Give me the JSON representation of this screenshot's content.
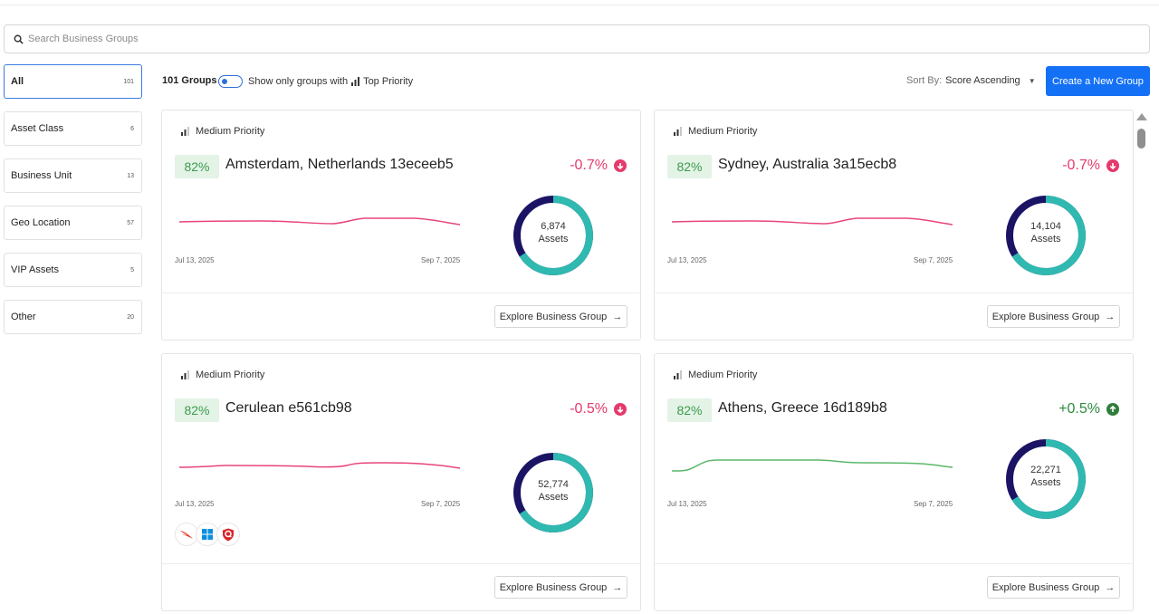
{
  "search": {
    "placeholder": "Search Business Groups"
  },
  "sidebar": {
    "items": [
      {
        "label": "All",
        "count": "101"
      },
      {
        "label": "Asset Class",
        "count": "6"
      },
      {
        "label": "Business Unit",
        "count": "13"
      },
      {
        "label": "Geo Location",
        "count": "57"
      },
      {
        "label": "VIP Assets",
        "count": "5"
      },
      {
        "label": "Other",
        "count": "20"
      }
    ]
  },
  "toolbar": {
    "groups_count": "101 Groups",
    "toggle_label_before": "Show only groups with",
    "toggle_label_after": "Top Priority",
    "sort_label": "Sort By:",
    "sort_value": "Score Ascending",
    "create_button": "Create a New Group"
  },
  "cards": [
    {
      "priority": "Medium Priority",
      "score": "82%",
      "title": "Amsterdam, Netherlands 13eceeb5",
      "delta": "-0.7%",
      "delta_direction": "down",
      "date_start": "Jul 13, 2025",
      "date_end": "Sep 7, 2025",
      "assets_count": "6,874",
      "assets_label": "Assets",
      "assets_fraction": 0.66,
      "explore_label": "Explore Business Group"
    },
    {
      "priority": "Medium Priority",
      "score": "82%",
      "title": "Sydney, Australia 3a15ecb8",
      "delta": "-0.7%",
      "delta_direction": "down",
      "date_start": "Jul 13, 2025",
      "date_end": "Sep 7, 2025",
      "assets_count": "14,104",
      "assets_label": "Assets",
      "assets_fraction": 0.66,
      "explore_label": "Explore Business Group"
    },
    {
      "priority": "Medium Priority",
      "score": "82%",
      "title": "Cerulean e561cb98",
      "delta": "-0.5%",
      "delta_direction": "down",
      "date_start": "Jul 13, 2025",
      "date_end": "Sep 7, 2025",
      "assets_count": "52,774",
      "assets_label": "Assets",
      "assets_fraction": 0.66,
      "explore_label": "Explore Business Group",
      "logos": [
        "crowdstrike-logo",
        "windows-logo",
        "qualys-logo"
      ]
    },
    {
      "priority": "Medium Priority",
      "score": "82%",
      "title": "Athens, Greece 16d189b8",
      "delta": "+0.5%",
      "delta_direction": "up",
      "date_start": "Jul 13, 2025",
      "date_end": "Sep 7, 2025",
      "assets_count": "22,271",
      "assets_label": "Assets",
      "assets_fraction": 0.66,
      "explore_label": "Explore Business Group"
    }
  ],
  "colors": {
    "accent": "#1470f5",
    "score_bg": "#e3f3e6",
    "score_text": "#3d9b4c",
    "negative": "#e53a6c",
    "positive": "#2f8a3e",
    "sparkline_negative": "#e8457a",
    "sparkline_positive": "#5cb86a",
    "donut_primary": "#2fb9b0",
    "donut_secondary": "#1b1464"
  }
}
